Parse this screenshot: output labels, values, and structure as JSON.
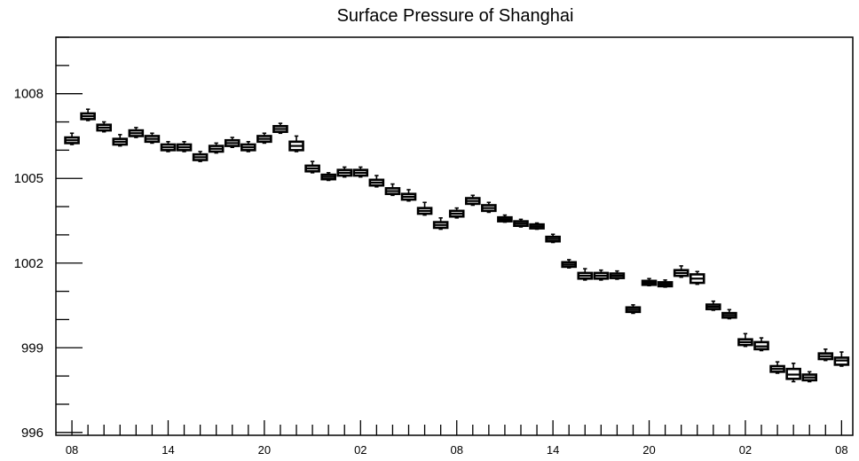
{
  "chart_data": {
    "type": "boxplot",
    "title": "Surface Pressure of Shanghai",
    "xlabel": "",
    "ylabel": "",
    "ylim": [
      995.9,
      1010.0
    ],
    "y_ticks": [
      996,
      999,
      1002,
      1005,
      1008
    ],
    "y_tick_labels": [
      "996",
      "999",
      "1002",
      "1005",
      "1008"
    ],
    "x_ticks": [
      0,
      6,
      12,
      18,
      24,
      30,
      36,
      42,
      48
    ],
    "x_tick_labels": [
      "08",
      "14",
      "20",
      "02",
      "08",
      "14",
      "20",
      "02",
      "08"
    ],
    "xlim": [
      -1,
      48.7
    ],
    "grid": false,
    "boxes": [
      {
        "x": 0,
        "median": 1006.35,
        "q1": 1006.25,
        "q3": 1006.45,
        "whisker_low": 1006.2,
        "whisker_high": 1006.6
      },
      {
        "x": 1,
        "median": 1007.2,
        "q1": 1007.1,
        "q3": 1007.3,
        "whisker_low": 1007.05,
        "whisker_high": 1007.45
      },
      {
        "x": 2,
        "median": 1006.8,
        "q1": 1006.7,
        "q3": 1006.9,
        "whisker_low": 1006.65,
        "whisker_high": 1007.0
      },
      {
        "x": 3,
        "median": 1006.3,
        "q1": 1006.2,
        "q3": 1006.4,
        "whisker_low": 1006.15,
        "whisker_high": 1006.55
      },
      {
        "x": 4,
        "median": 1006.6,
        "q1": 1006.5,
        "q3": 1006.7,
        "whisker_low": 1006.45,
        "whisker_high": 1006.8
      },
      {
        "x": 5,
        "median": 1006.4,
        "q1": 1006.3,
        "q3": 1006.5,
        "whisker_low": 1006.25,
        "whisker_high": 1006.6
      },
      {
        "x": 6,
        "median": 1006.1,
        "q1": 1006.0,
        "q3": 1006.2,
        "whisker_low": 1005.95,
        "whisker_high": 1006.3
      },
      {
        "x": 7,
        "median": 1006.1,
        "q1": 1006.0,
        "q3": 1006.2,
        "whisker_low": 1005.95,
        "whisker_high": 1006.3
      },
      {
        "x": 8,
        "median": 1005.75,
        "q1": 1005.65,
        "q3": 1005.85,
        "whisker_low": 1005.6,
        "whisker_high": 1005.95
      },
      {
        "x": 9,
        "median": 1006.05,
        "q1": 1005.95,
        "q3": 1006.15,
        "whisker_low": 1005.9,
        "whisker_high": 1006.25
      },
      {
        "x": 10,
        "median": 1006.25,
        "q1": 1006.15,
        "q3": 1006.35,
        "whisker_low": 1006.1,
        "whisker_high": 1006.45
      },
      {
        "x": 11,
        "median": 1006.1,
        "q1": 1006.0,
        "q3": 1006.2,
        "whisker_low": 1005.95,
        "whisker_high": 1006.3
      },
      {
        "x": 12,
        "median": 1006.4,
        "q1": 1006.3,
        "q3": 1006.5,
        "whisker_low": 1006.25,
        "whisker_high": 1006.6
      },
      {
        "x": 13,
        "median": 1006.75,
        "q1": 1006.65,
        "q3": 1006.85,
        "whisker_low": 1006.6,
        "whisker_high": 1006.95
      },
      {
        "x": 14,
        "median": 1006.15,
        "q1": 1006.0,
        "q3": 1006.3,
        "whisker_low": 1005.95,
        "whisker_high": 1006.5
      },
      {
        "x": 15,
        "median": 1005.35,
        "q1": 1005.25,
        "q3": 1005.45,
        "whisker_low": 1005.2,
        "whisker_high": 1005.6
      },
      {
        "x": 16,
        "median": 1005.05,
        "q1": 1004.97,
        "q3": 1005.13,
        "whisker_low": 1004.93,
        "whisker_high": 1005.2
      },
      {
        "x": 17,
        "median": 1005.2,
        "q1": 1005.1,
        "q3": 1005.3,
        "whisker_low": 1005.05,
        "whisker_high": 1005.4
      },
      {
        "x": 18,
        "median": 1005.2,
        "q1": 1005.1,
        "q3": 1005.3,
        "whisker_low": 1005.05,
        "whisker_high": 1005.4
      },
      {
        "x": 19,
        "median": 1004.85,
        "q1": 1004.75,
        "q3": 1004.95,
        "whisker_low": 1004.7,
        "whisker_high": 1005.1
      },
      {
        "x": 20,
        "median": 1004.55,
        "q1": 1004.45,
        "q3": 1004.65,
        "whisker_low": 1004.4,
        "whisker_high": 1004.8
      },
      {
        "x": 21,
        "median": 1004.35,
        "q1": 1004.25,
        "q3": 1004.45,
        "whisker_low": 1004.2,
        "whisker_high": 1004.6
      },
      {
        "x": 22,
        "median": 1003.85,
        "q1": 1003.75,
        "q3": 1003.95,
        "whisker_low": 1003.7,
        "whisker_high": 1004.15
      },
      {
        "x": 23,
        "median": 1003.35,
        "q1": 1003.25,
        "q3": 1003.45,
        "whisker_low": 1003.2,
        "whisker_high": 1003.6
      },
      {
        "x": 24,
        "median": 1003.75,
        "q1": 1003.65,
        "q3": 1003.85,
        "whisker_low": 1003.6,
        "whisker_high": 1003.95
      },
      {
        "x": 25,
        "median": 1004.2,
        "q1": 1004.1,
        "q3": 1004.3,
        "whisker_low": 1004.05,
        "whisker_high": 1004.4
      },
      {
        "x": 26,
        "median": 1003.95,
        "q1": 1003.85,
        "q3": 1004.05,
        "whisker_low": 1003.8,
        "whisker_high": 1004.15
      },
      {
        "x": 27,
        "median": 1003.55,
        "q1": 1003.48,
        "q3": 1003.62,
        "whisker_low": 1003.45,
        "whisker_high": 1003.7
      },
      {
        "x": 28,
        "median": 1003.4,
        "q1": 1003.32,
        "q3": 1003.48,
        "whisker_low": 1003.28,
        "whisker_high": 1003.55
      },
      {
        "x": 29,
        "median": 1003.3,
        "q1": 1003.23,
        "q3": 1003.37,
        "whisker_low": 1003.2,
        "whisker_high": 1003.42
      },
      {
        "x": 30,
        "median": 1002.85,
        "q1": 1002.77,
        "q3": 1002.93,
        "whisker_low": 1002.73,
        "whisker_high": 1003.02
      },
      {
        "x": 31,
        "median": 1001.95,
        "q1": 1001.87,
        "q3": 1002.03,
        "whisker_low": 1001.83,
        "whisker_high": 1002.12
      },
      {
        "x": 32,
        "median": 1001.55,
        "q1": 1001.45,
        "q3": 1001.65,
        "whisker_low": 1001.4,
        "whisker_high": 1001.8
      },
      {
        "x": 33,
        "median": 1001.55,
        "q1": 1001.45,
        "q3": 1001.65,
        "whisker_low": 1001.4,
        "whisker_high": 1001.75
      },
      {
        "x": 34,
        "median": 1001.55,
        "q1": 1001.47,
        "q3": 1001.63,
        "whisker_low": 1001.43,
        "whisker_high": 1001.72
      },
      {
        "x": 35,
        "median": 1000.35,
        "q1": 1000.27,
        "q3": 1000.43,
        "whisker_low": 1000.22,
        "whisker_high": 1000.52
      },
      {
        "x": 36,
        "median": 1001.3,
        "q1": 1001.23,
        "q3": 1001.37,
        "whisker_low": 1001.2,
        "whisker_high": 1001.45
      },
      {
        "x": 37,
        "median": 1001.25,
        "q1": 1001.18,
        "q3": 1001.32,
        "whisker_low": 1001.15,
        "whisker_high": 1001.4
      },
      {
        "x": 38,
        "median": 1001.65,
        "q1": 1001.55,
        "q3": 1001.75,
        "whisker_low": 1001.5,
        "whisker_high": 1001.9
      },
      {
        "x": 39,
        "median": 1001.45,
        "q1": 1001.3,
        "q3": 1001.6,
        "whisker_low": 1001.25,
        "whisker_high": 1001.7
      },
      {
        "x": 40,
        "median": 1000.45,
        "q1": 1000.37,
        "q3": 1000.53,
        "whisker_low": 1000.33,
        "whisker_high": 1000.65
      },
      {
        "x": 41,
        "median": 1000.15,
        "q1": 1000.07,
        "q3": 1000.23,
        "whisker_low": 1000.03,
        "whisker_high": 1000.35
      },
      {
        "x": 42,
        "median": 999.2,
        "q1": 999.1,
        "q3": 999.3,
        "whisker_low": 999.05,
        "whisker_high": 999.5
      },
      {
        "x": 43,
        "median": 999.05,
        "q1": 998.95,
        "q3": 999.2,
        "whisker_low": 998.9,
        "whisker_high": 999.35
      },
      {
        "x": 44,
        "median": 998.25,
        "q1": 998.15,
        "q3": 998.35,
        "whisker_low": 998.1,
        "whisker_high": 998.5
      },
      {
        "x": 45,
        "median": 998.05,
        "q1": 997.9,
        "q3": 998.25,
        "whisker_low": 997.8,
        "whisker_high": 998.45
      },
      {
        "x": 46,
        "median": 997.95,
        "q1": 997.85,
        "q3": 998.05,
        "whisker_low": 997.8,
        "whisker_high": 998.15
      },
      {
        "x": 47,
        "median": 998.7,
        "q1": 998.6,
        "q3": 998.8,
        "whisker_low": 998.55,
        "whisker_high": 998.95
      },
      {
        "x": 48,
        "median": 998.55,
        "q1": 998.4,
        "q3": 998.65,
        "whisker_low": 998.35,
        "whisker_high": 998.85
      }
    ]
  }
}
